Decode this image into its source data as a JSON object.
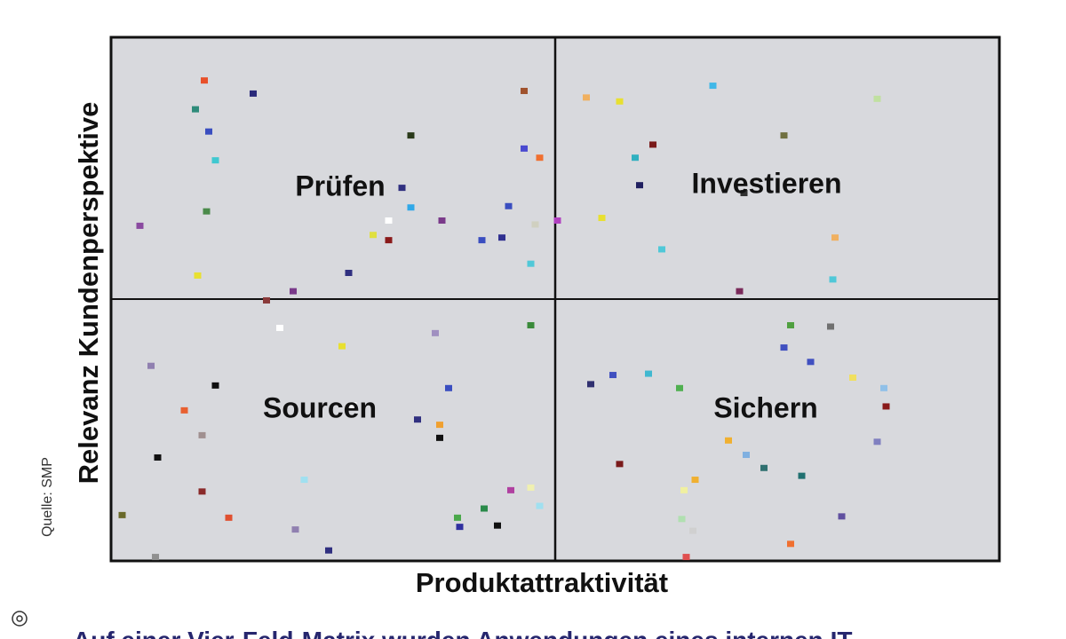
{
  "chart_data": {
    "type": "scatter",
    "x_label": "Produktattraktivität",
    "y_label": "Relevanz Kundenperspektive",
    "annotations": [
      "Prüfen",
      "Investieren",
      "Sourcen",
      "Sichern"
    ],
    "xlim": [
      0,
      4
    ],
    "ylim": [
      0,
      4
    ],
    "x": [
      0.42,
      0.64,
      1.86,
      0.38,
      0.44,
      1.35,
      1.86,
      1.93,
      0.47,
      1.31,
      0.43,
      1.35,
      1.79,
      0.13,
      1.25,
      1.49,
      2.01,
      1.91,
      1.18,
      1.25,
      1.67,
      1.76,
      1.89,
      0.39,
      1.07,
      0.82,
      0.7,
      2.14,
      2.29,
      2.71,
      3.45,
      3.03,
      2.44,
      2.36,
      2.38,
      2.85,
      2.21,
      2.48,
      3.26,
      3.25,
      2.83,
      0.76,
      1.04,
      1.46,
      1.89,
      0.18,
      0.47,
      1.52,
      0.33,
      1.09,
      1.38,
      1.48,
      1.48,
      0.41,
      0.21,
      0.87,
      0.41,
      1.89,
      1.8,
      1.93,
      0.05,
      0.53,
      1.68,
      1.56,
      1.57,
      1.74,
      0.83,
      0.98,
      0.2,
      3.06,
      3.24,
      3.03,
      3.15,
      2.16,
      2.26,
      2.42,
      2.56,
      3.34,
      3.48,
      3.49,
      2.78,
      2.86,
      2.94,
      3.45,
      2.29,
      3.11,
      2.63,
      2.58,
      3.29,
      2.57,
      2.62,
      3.06,
      2.59
    ],
    "y": [
      3.67,
      3.57,
      3.59,
      3.45,
      3.28,
      3.25,
      3.15,
      3.08,
      3.06,
      2.85,
      2.67,
      2.7,
      2.71,
      2.56,
      2.6,
      2.6,
      2.6,
      2.57,
      2.49,
      2.45,
      2.45,
      2.47,
      2.27,
      2.18,
      2.2,
      2.06,
      1.99,
      3.54,
      3.51,
      3.63,
      3.53,
      3.25,
      3.18,
      3.08,
      2.87,
      2.81,
      2.62,
      2.38,
      2.47,
      2.15,
      2.06,
      1.78,
      1.64,
      1.74,
      1.8,
      1.49,
      1.34,
      1.32,
      1.15,
      1.19,
      1.08,
      1.04,
      0.94,
      0.96,
      0.79,
      0.62,
      0.53,
      0.56,
      0.54,
      0.42,
      0.35,
      0.33,
      0.4,
      0.33,
      0.26,
      0.27,
      0.24,
      0.08,
      0.03,
      1.8,
      1.79,
      1.63,
      1.52,
      1.35,
      1.42,
      1.43,
      1.32,
      1.4,
      1.32,
      1.18,
      0.92,
      0.81,
      0.71,
      0.91,
      0.74,
      0.65,
      0.62,
      0.54,
      0.34,
      0.32,
      0.23,
      0.13,
      0.03
    ],
    "colors": [
      "#e8502a",
      "#2a2a7a",
      "#a0522d",
      "#2e8b7a",
      "#3a4ec0",
      "#2a3a1a",
      "#4a4ad0",
      "#f07030",
      "#40c8d0",
      "#303080",
      "#4a8a4a",
      "#30a8e8",
      "#3a4ec0",
      "#8a4aa0",
      "#ffffff",
      "#7a3a8a",
      "#b040c0",
      "#d0d0c0",
      "#e0e040",
      "#8a1a1a",
      "#3a4ec0",
      "#303090",
      "#50c8d8",
      "#e8e030",
      "#303080",
      "#7a3a8a",
      "#8a3a3a",
      "#f0b060",
      "#e8e030",
      "#40b8e8",
      "#c0e0a0",
      "#707040",
      "#7a1a1a",
      "#30b0c0",
      "#202060",
      "#303030",
      "#e8e030",
      "#50c8d8",
      "#f0b060",
      "#50c8d8",
      "#7a2a5a",
      "#ffffff",
      "#e8e030",
      "#a090c0",
      "#3a8a3a",
      "#9080b0",
      "#101010",
      "#3a4ec0",
      "#e86030",
      "#ffffff",
      "#303080",
      "#f0a030",
      "#101010",
      "#a09090",
      "#101010",
      "#a0e0f0",
      "#8a2a2a",
      "#f0f0b0",
      "#b040a0",
      "#a0e0f0",
      "#6a6a2a",
      "#e05030",
      "#2a8a4a",
      "#4aa84a",
      "#3030a0",
      "#101010",
      "#9080b0",
      "#303080",
      "#909090",
      "#50a040",
      "#707070",
      "#4050c0",
      "#4050c0",
      "#303070",
      "#4050c0",
      "#40b8d0",
      "#50b050",
      "#f0e060",
      "#90c0e8",
      "#8a1a1a",
      "#f0b030",
      "#80b0e0",
      "#307070",
      "#8080c0",
      "#7a1a1a",
      "#207070",
      "#f0b030",
      "#f0f0a0",
      "#6050a0",
      "#b0e0b0",
      "#d0d0d0",
      "#f07030",
      "#e05050"
    ]
  },
  "source": "Quelle: SMP",
  "caption": "Auf einer Vier-Feld-Matrix wurden Anwendungen eines internen IT-"
}
